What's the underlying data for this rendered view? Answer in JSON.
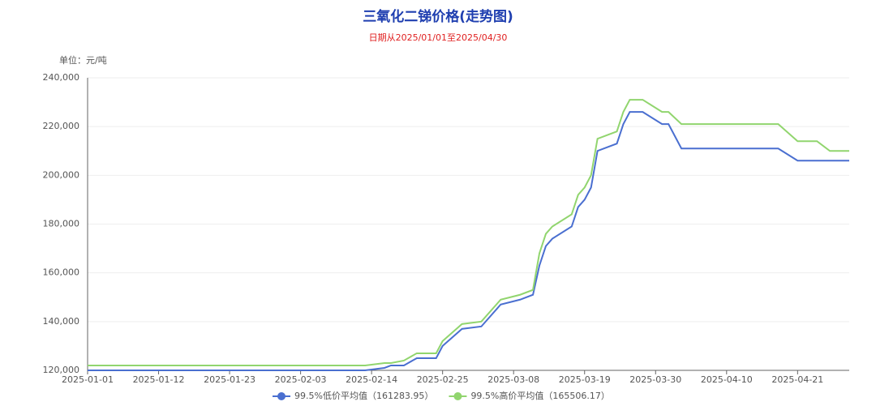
{
  "chart_data": {
    "type": "line",
    "title": "三氧化二锑价格(走势图)",
    "subtitle": "日期从2025/01/01至2025/04/30",
    "y_label": "单位：元/吨",
    "x": [
      "2025-01-01",
      "2025-02-13",
      "2025-02-16",
      "2025-02-17",
      "2025-02-19",
      "2025-02-21",
      "2025-02-24",
      "2025-02-25",
      "2025-02-28",
      "2025-03-03",
      "2025-03-06",
      "2025-03-09",
      "2025-03-11",
      "2025-03-12",
      "2025-03-13",
      "2025-03-14",
      "2025-03-17",
      "2025-03-18",
      "2025-03-19",
      "2025-03-20",
      "2025-03-21",
      "2025-03-24",
      "2025-03-25",
      "2025-03-26",
      "2025-03-28",
      "2025-03-31",
      "2025-04-01",
      "2025-04-03",
      "2025-04-18",
      "2025-04-21",
      "2025-04-24",
      "2025-04-26",
      "2025-04-29"
    ],
    "series": [
      {
        "name": "99.5%低价平均值（161283.95）",
        "color": "#4a6fd0",
        "values": [
          120000,
          120000,
          121000,
          122000,
          122000,
          125000,
          125000,
          130000,
          137000,
          138000,
          147000,
          149000,
          151000,
          163000,
          171000,
          174000,
          179000,
          187000,
          190000,
          195000,
          210000,
          213000,
          221000,
          226000,
          226000,
          221000,
          221000,
          211000,
          211000,
          206000,
          206000,
          206000,
          206000
        ]
      },
      {
        "name": "99.5%高价平均值（165506.17）",
        "color": "#91d56e",
        "values": [
          122000,
          122000,
          123000,
          123000,
          124000,
          127000,
          127000,
          132000,
          139000,
          140000,
          149000,
          151000,
          153000,
          168000,
          176000,
          179000,
          184000,
          192000,
          195000,
          200000,
          215000,
          218000,
          226000,
          231000,
          231000,
          226000,
          226000,
          221000,
          221000,
          214000,
          214000,
          210000,
          210000
        ]
      }
    ],
    "xlim": [
      "2025-01-01",
      "2025-04-29"
    ],
    "xticks": [
      "2025-01-01",
      "2025-01-12",
      "2025-01-23",
      "2025-02-03",
      "2025-02-14",
      "2025-02-25",
      "2025-03-08",
      "2025-03-19",
      "2025-03-30",
      "2025-04-10",
      "2025-04-21"
    ],
    "ylim": [
      120000,
      240000
    ],
    "yticks": [
      {
        "value": 120000,
        "label": "120,000"
      },
      {
        "value": 140000,
        "label": "140,000"
      },
      {
        "value": 160000,
        "label": "160,000"
      },
      {
        "value": 180000,
        "label": "180,000"
      },
      {
        "value": 200000,
        "label": "200,000"
      },
      {
        "value": 220000,
        "label": "220,000"
      },
      {
        "value": 240000,
        "label": "240,000"
      }
    ],
    "grid": true
  }
}
